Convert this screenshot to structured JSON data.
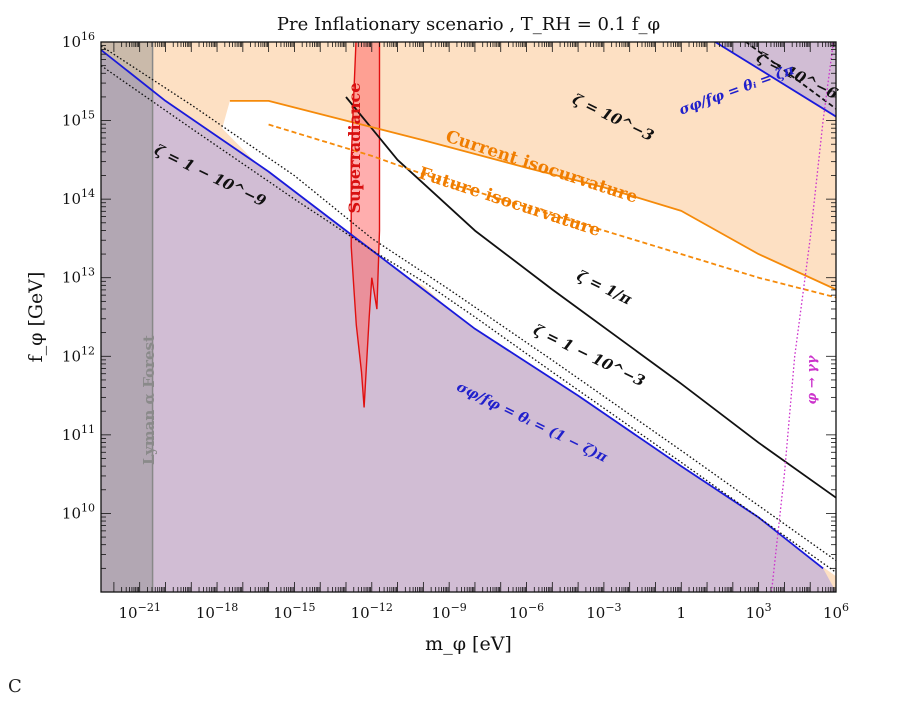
{
  "chart_data": {
    "type": "line",
    "title": "Pre Inflationary scenario , T_RH = 0.1 f_φ",
    "xlabel": "m_φ [eV]",
    "ylabel": "f_φ [GeV]",
    "xscale": "log",
    "yscale": "log",
    "xlim_log10": [
      -22.5,
      6.0
    ],
    "ylim_log10": [
      9.0,
      16.0
    ],
    "x_ticks": [
      {
        "exp": -21,
        "label": "10^-21"
      },
      {
        "exp": -18,
        "label": "10^-18"
      },
      {
        "exp": -15,
        "label": "10^-15"
      },
      {
        "exp": -12,
        "label": "10^-12"
      },
      {
        "exp": -9,
        "label": "10^-9"
      },
      {
        "exp": -6,
        "label": "10^-6"
      },
      {
        "exp": -3,
        "label": "10^-3"
      },
      {
        "exp": 0,
        "label": "1"
      },
      {
        "exp": 3,
        "label": "10^3"
      },
      {
        "exp": 6,
        "label": "10^6"
      }
    ],
    "y_ticks": [
      {
        "exp": 10,
        "label": "10^10"
      },
      {
        "exp": 11,
        "label": "10^11"
      },
      {
        "exp": 12,
        "label": "10^12"
      },
      {
        "exp": 13,
        "label": "10^13"
      },
      {
        "exp": 14,
        "label": "10^14"
      },
      {
        "exp": 15,
        "label": "10^15"
      },
      {
        "exp": 16,
        "label": "10^16"
      }
    ],
    "series": [
      {
        "name": "σ_φ/f_φ = θ_i = ζπ",
        "style": "solid",
        "color": "#1a1adb",
        "points_log10": [
          [
            -11,
            18.5
          ],
          [
            6,
            15.05
          ]
        ]
      },
      {
        "name": "σ_φ/f_φ = θ_i = (1 − ζ)π",
        "style": "solid",
        "color": "#1a1adb",
        "points_log10": [
          [
            -22.5,
            15.9
          ],
          [
            -20,
            15.25
          ],
          [
            -16,
            14.35
          ],
          [
            -13,
            13.6
          ],
          [
            -11,
            13.1
          ],
          [
            -8,
            12.35
          ],
          [
            -4,
            11.5
          ],
          [
            0,
            10.6
          ],
          [
            3,
            9.95
          ],
          [
            5.5,
            9.3
          ]
        ]
      },
      {
        "name": "ζ = 10^-3",
        "style": "dashed",
        "color": "#111111",
        "points_log10": [
          [
            -2,
            17.1
          ],
          [
            6,
            15.15
          ]
        ]
      },
      {
        "name": "ζ = 1/π",
        "style": "solid",
        "color": "#111111",
        "points_log10": [
          [
            -13,
            15.3
          ],
          [
            -11,
            14.5
          ],
          [
            -10,
            14.2
          ],
          [
            -8,
            13.6
          ],
          [
            -5,
            12.85
          ],
          [
            0,
            11.65
          ],
          [
            3,
            10.9
          ],
          [
            6,
            10.2
          ]
        ]
      },
      {
        "name": "ζ = 1 − 10^-3",
        "style": "dotted",
        "color": "#111111",
        "points_log10": [
          [
            -22.5,
            15.7
          ],
          [
            -19,
            14.9
          ],
          [
            -15,
            14.0
          ],
          [
            -12,
            13.35
          ],
          [
            -10,
            12.95
          ],
          [
            -8,
            12.5
          ],
          [
            -5,
            11.8
          ],
          [
            0,
            10.65
          ],
          [
            3,
            9.95
          ],
          [
            6,
            9.25
          ]
        ]
      },
      {
        "name": "ζ = 1 − 10^-9",
        "style": "dotted",
        "color": "#111111",
        "points_log10": [
          [
            -22.5,
            15.95
          ],
          [
            -19,
            15.2
          ],
          [
            -15,
            14.3
          ],
          [
            -12,
            13.5
          ],
          [
            -9,
            12.85
          ],
          [
            -5,
            11.95
          ],
          [
            0,
            10.8
          ],
          [
            3,
            10.1
          ],
          [
            6,
            9.4
          ]
        ]
      },
      {
        "name": "Current isocurvature",
        "style": "solid",
        "color": "#f58a0a",
        "points_log10": [
          [
            -17.5,
            15.25
          ],
          [
            -16,
            15.25
          ],
          [
            -13,
            15.0
          ],
          [
            -10,
            14.75
          ],
          [
            -6,
            14.4
          ],
          [
            -3,
            14.15
          ],
          [
            0,
            13.85
          ],
          [
            3,
            13.3
          ],
          [
            6,
            12.85
          ]
        ]
      },
      {
        "name": "Future isocurvature",
        "style": "dashed",
        "color": "#f58a0a",
        "points_log10": [
          [
            -16,
            14.95
          ],
          [
            -15,
            14.85
          ],
          [
            -12,
            14.55
          ],
          [
            -9,
            14.2
          ],
          [
            -6,
            13.9
          ],
          [
            -3,
            13.6
          ],
          [
            0,
            13.3
          ],
          [
            3,
            13.0
          ],
          [
            6,
            12.75
          ]
        ]
      },
      {
        "name": "φ → γγ",
        "style": "dotted",
        "color": "#cc33cc",
        "points_log10": [
          [
            3.5,
            9.0
          ],
          [
            4.0,
            10.5
          ],
          [
            4.4,
            12.0
          ],
          [
            5.0,
            13.5
          ],
          [
            5.5,
            15.0
          ],
          [
            5.9,
            16.0
          ]
        ]
      }
    ],
    "regions": [
      {
        "name": "Lyman α Forest",
        "color": "#8c8c8c",
        "x_log10": [
          -22.5,
          -20.5
        ]
      },
      {
        "name": "Superradiance",
        "color": "#ff3333"
      }
    ],
    "labels": {
      "current_iso": "Current isocurvature",
      "future_iso": "Future isocurvature",
      "superradiance": "Superradiance",
      "lyman": "Lyman α Forest",
      "zeta_1e3": "ζ = 10^−3",
      "zeta_1e6": "ζ = 10^−6",
      "zeta_1overpi": "ζ = 1/π",
      "zeta_1m1e3": "ζ = 1 − 10^−3",
      "zeta_1m1e9": "ζ = 1 − 10^−9",
      "theta_zeta": "σφ/fφ = θᵢ = ζπ",
      "theta_1mzeta": "σφ/fφ = θᵢ = (1 − ζ)π",
      "gamma": "φ → γγ"
    },
    "grid": false,
    "legend": "none"
  },
  "bottom_text": "C"
}
